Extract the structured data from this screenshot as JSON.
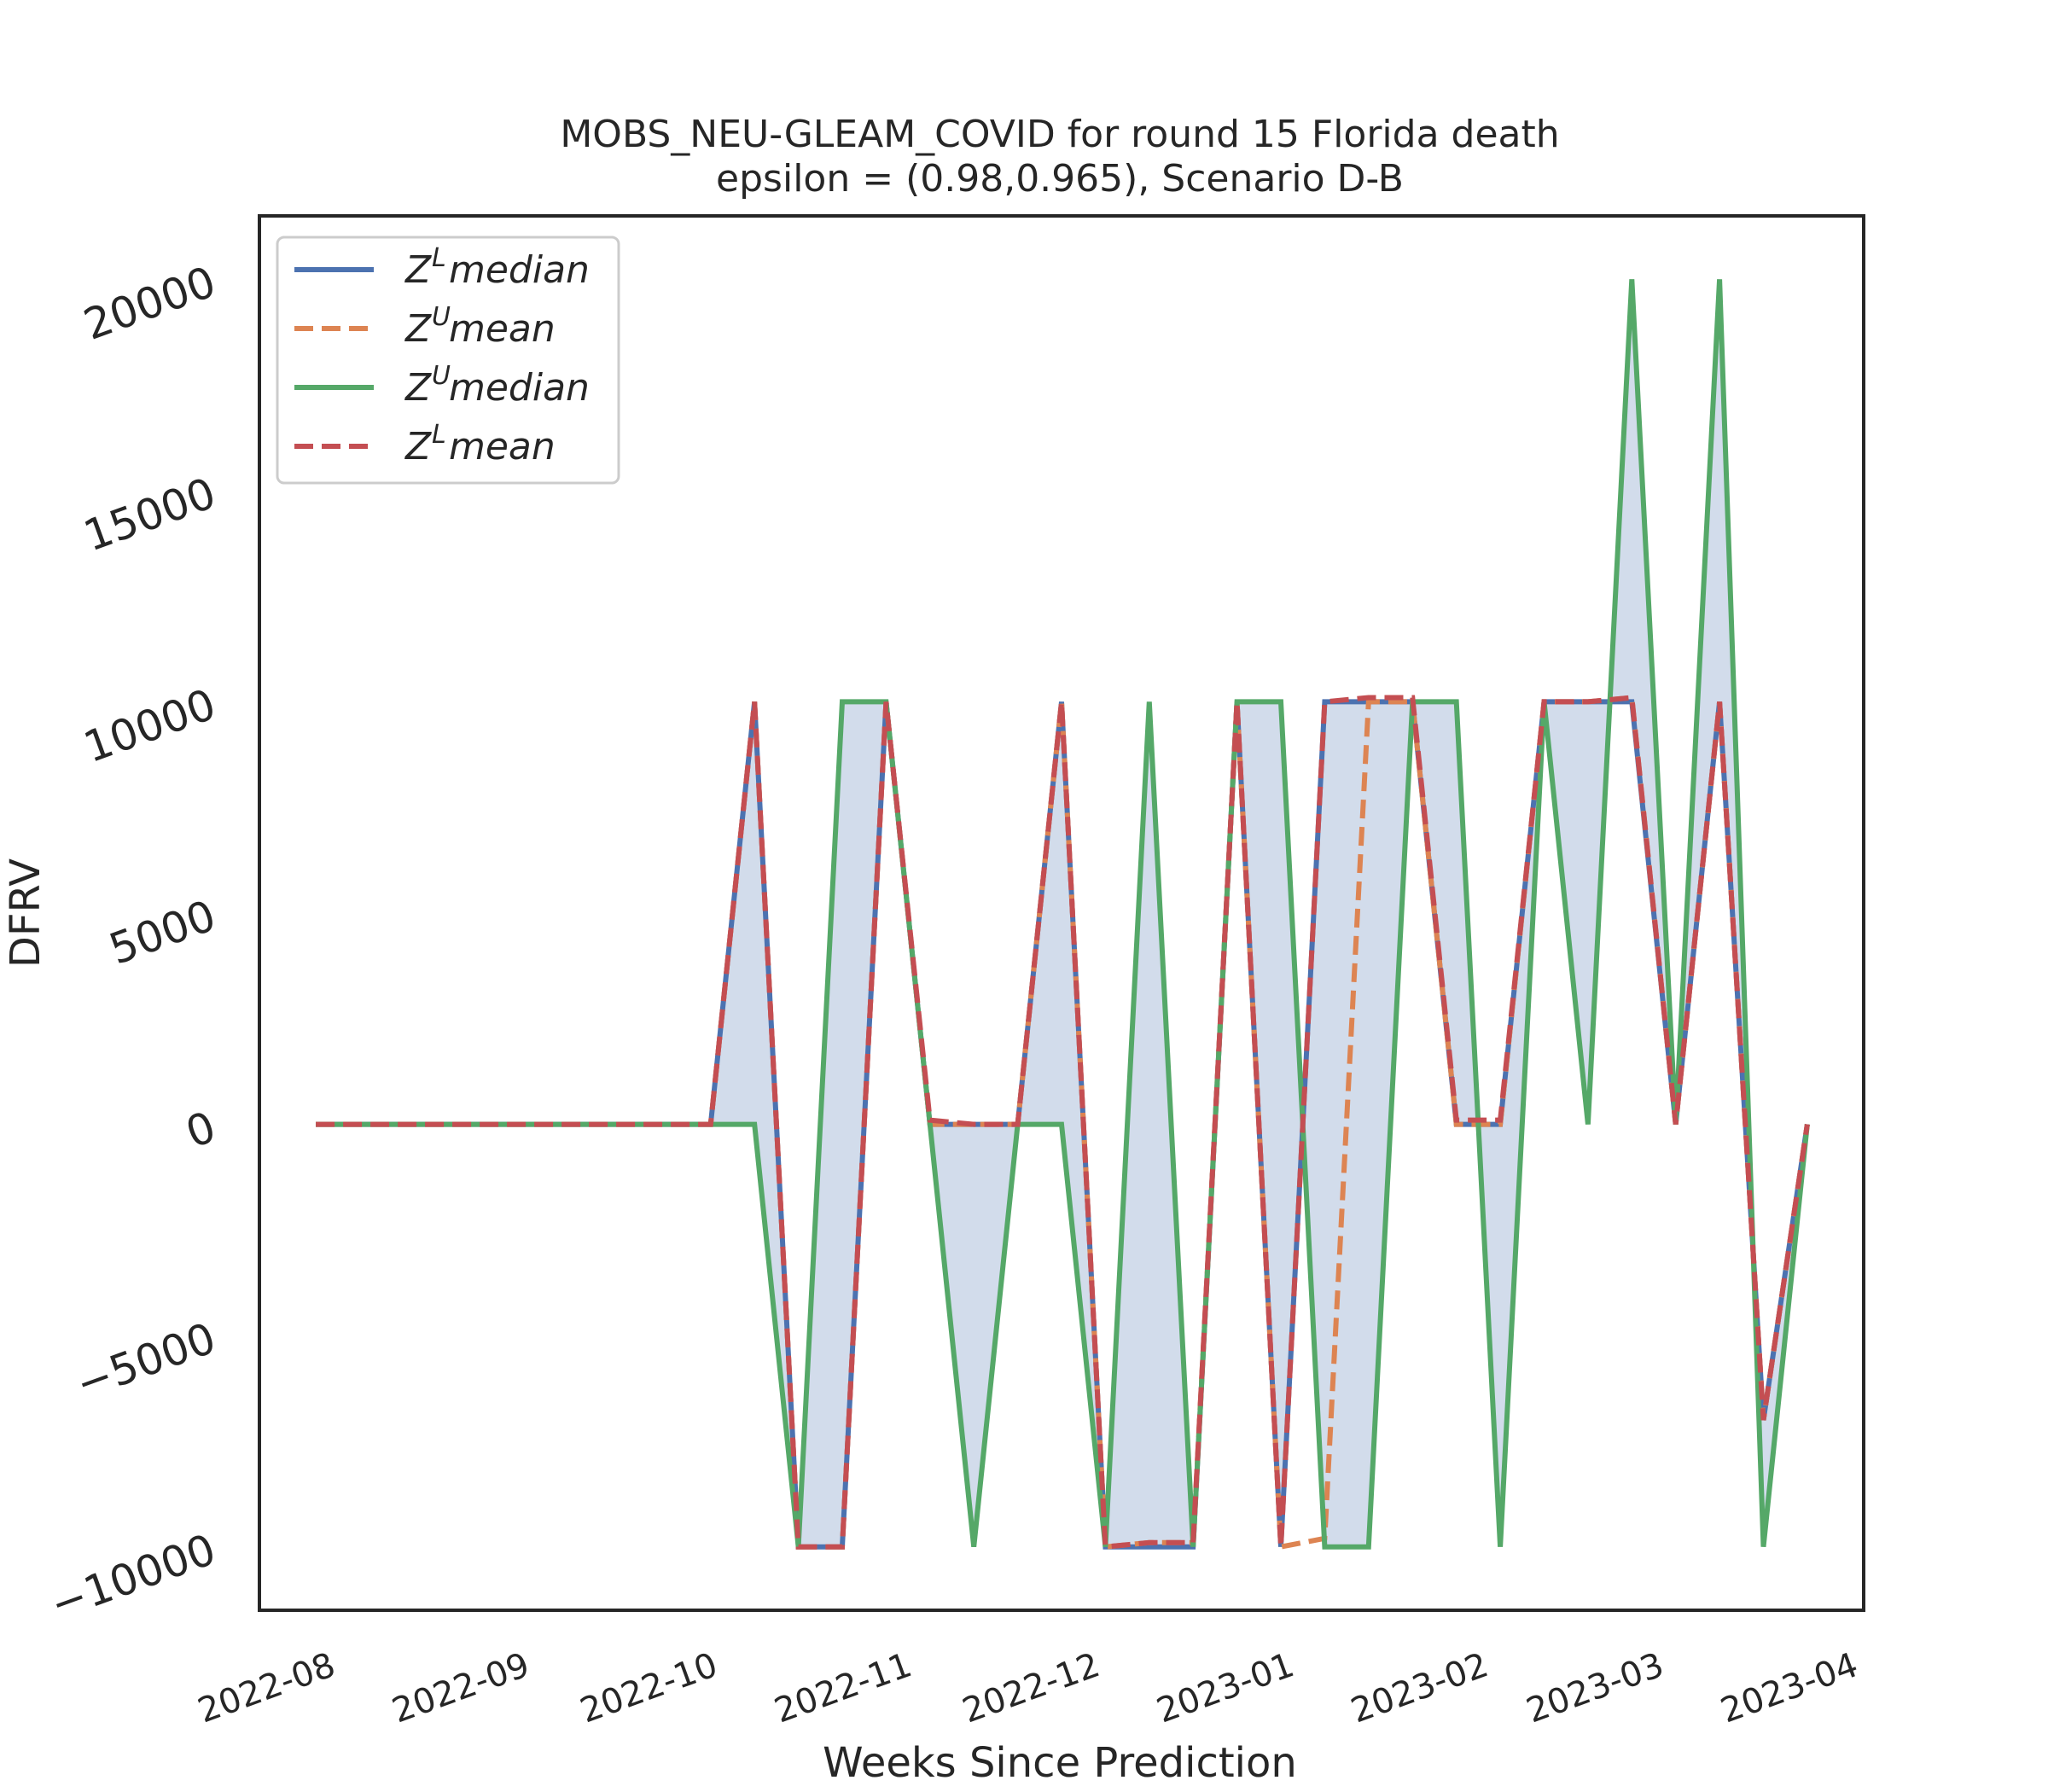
{
  "chart_data": {
    "type": "line",
    "title": "MOBS_NEU-GLEAM_COVID for round 15 Florida  death",
    "subtitle": "epsilon = (0.98,0.965), Scenario D-B",
    "xlabel": "Weeks Since Prediction",
    "ylabel": "DFRV",
    "ylim": [
      -11500,
      21500
    ],
    "xlim": [
      "2022-07-22",
      "2023-04-04"
    ],
    "yticks": [
      -10000,
      -5000,
      0,
      5000,
      10000,
      15000,
      20000
    ],
    "ytick_labels": [
      "−10000",
      "−5000",
      "0",
      "5000",
      "10000",
      "15000",
      "20000"
    ],
    "xticks": [
      "2022-08-01",
      "2022-09-01",
      "2022-10-01",
      "2022-11-01",
      "2022-12-01",
      "2023-01-01",
      "2023-02-01",
      "2023-03-01",
      "2023-04-01"
    ],
    "xtick_labels": [
      "2022-08",
      "2022-09",
      "2022-10",
      "2022-11",
      "2022-12",
      "2023-01",
      "2023-02",
      "2023-03",
      "2023-04"
    ],
    "grid": false,
    "legend_position": "top-left",
    "x": [
      "2022-07-31",
      "2022-08-07",
      "2022-08-14",
      "2022-08-21",
      "2022-08-28",
      "2022-09-04",
      "2022-09-11",
      "2022-09-18",
      "2022-09-25",
      "2022-10-02",
      "2022-10-09",
      "2022-10-16",
      "2022-10-23",
      "2022-10-30",
      "2022-11-06",
      "2022-11-13",
      "2022-11-20",
      "2022-11-27",
      "2022-12-04",
      "2022-12-11",
      "2022-12-18",
      "2022-12-25",
      "2023-01-01",
      "2023-01-08",
      "2023-01-15",
      "2023-01-22",
      "2023-01-29",
      "2023-02-05",
      "2023-02-12",
      "2023-02-19",
      "2023-02-26",
      "2023-03-05",
      "2023-03-12",
      "2023-03-19",
      "2023-03-26"
    ],
    "series": [
      {
        "name": "Z^L median",
        "legend_base": "Z",
        "legend_sup": "L",
        "legend_word": "median",
        "color": "#4c72b0",
        "dash": "solid",
        "values": [
          0,
          0,
          0,
          0,
          0,
          0,
          0,
          0,
          0,
          0,
          10000,
          -10000,
          -10000,
          10000,
          0,
          0,
          0,
          10000,
          -10000,
          -10000,
          -10000,
          10000,
          -10000,
          10000,
          10000,
          10000,
          0,
          0,
          10000,
          10000,
          10000,
          0,
          10000,
          -7000,
          0
        ]
      },
      {
        "name": "Z^U mean",
        "legend_base": "Z",
        "legend_sup": "U",
        "legend_word": "mean",
        "color": "#dd8452",
        "dash": "dashed",
        "values": [
          0,
          0,
          0,
          0,
          0,
          0,
          0,
          0,
          0,
          0,
          10000,
          -10000,
          -10000,
          10000,
          0,
          0,
          0,
          10000,
          -10000,
          -9900,
          -9900,
          10000,
          -10000,
          -9800,
          10000,
          10000,
          0,
          0,
          10000,
          10000,
          10100,
          0,
          10000,
          -7000,
          0
        ]
      },
      {
        "name": "Z^U median",
        "legend_base": "Z",
        "legend_sup": "U",
        "legend_word": "median",
        "color": "#55a868",
        "dash": "solid",
        "values": [
          0,
          0,
          0,
          0,
          0,
          0,
          0,
          0,
          0,
          0,
          0,
          -10000,
          10000,
          10000,
          0,
          -10000,
          0,
          0,
          -10000,
          10000,
          -10000,
          10000,
          10000,
          -10000,
          -10000,
          10000,
          10000,
          -10000,
          10000,
          0,
          20000,
          0,
          20000,
          -10000,
          0
        ]
      },
      {
        "name": "Z^L mean",
        "legend_base": "Z",
        "legend_sup": "L",
        "legend_word": "mean",
        "color": "#c44e52",
        "dash": "dashed",
        "values": [
          0,
          0,
          0,
          0,
          0,
          0,
          0,
          0,
          0,
          0,
          10000,
          -10000,
          -10000,
          10000,
          100,
          0,
          0,
          10000,
          -10000,
          -9900,
          -9900,
          10000,
          -10000,
          10000,
          10100,
          10100,
          100,
          100,
          10000,
          10000,
          10100,
          0,
          10000,
          -7000,
          0
        ]
      }
    ]
  }
}
